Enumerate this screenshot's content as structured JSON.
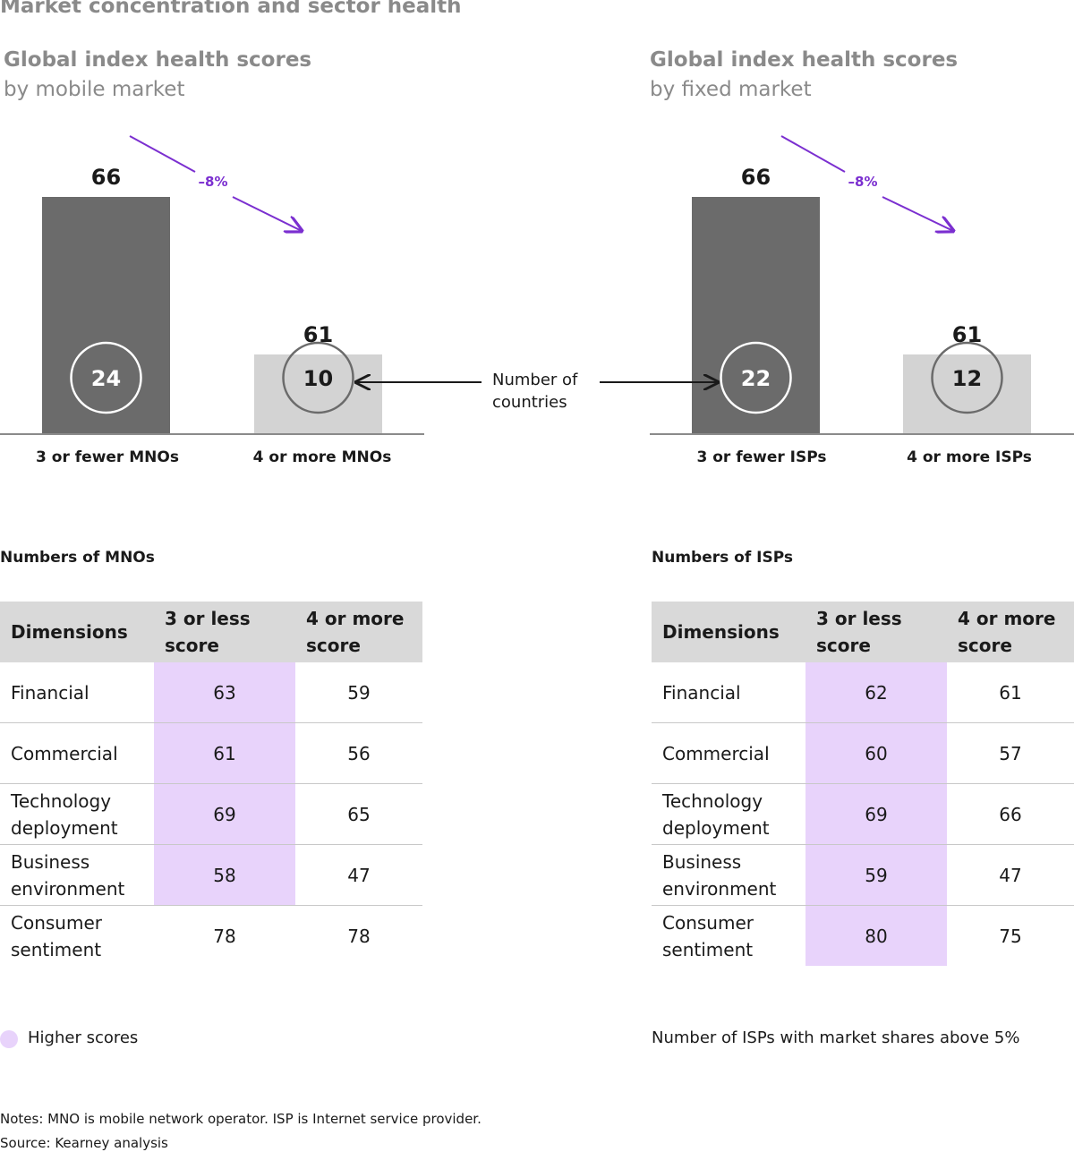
{
  "title": "Market concentration and sector health",
  "chart_data": [
    {
      "type": "bar",
      "title": "Global index health scores",
      "subtitle": "by mobile market",
      "categories": [
        "3 or fewer MNOs",
        "4 or more MNOs"
      ],
      "values": [
        66,
        61
      ],
      "countries": [
        24,
        10
      ],
      "change_label": "–8%",
      "ylim": [
        0,
        80
      ],
      "colors": [
        "#6b6b6b",
        "#d3d3d3"
      ]
    },
    {
      "type": "bar",
      "title": "Global index health scores",
      "subtitle": "by fixed market",
      "categories": [
        "3 or fewer ISPs",
        "4 or more ISPs"
      ],
      "values": [
        66,
        61
      ],
      "countries": [
        22,
        12
      ],
      "change_label": "–8%",
      "ylim": [
        0,
        80
      ],
      "colors": [
        "#6b6b6b",
        "#d3d3d3"
      ]
    }
  ],
  "countries_label": [
    "Number of",
    "countries"
  ],
  "tables": [
    {
      "section_title": "Numbers of MNOs",
      "headers": [
        "Dimensions",
        "3 or less score",
        "4 or more score"
      ],
      "rows": [
        {
          "dimension": "Financial",
          "a": "63",
          "b": "59",
          "highlight": "a"
        },
        {
          "dimension": "Commercial",
          "a": "61",
          "b": "56",
          "highlight": "a"
        },
        {
          "dimension": "Technology deployment",
          "a": "69",
          "b": "65",
          "highlight": "a"
        },
        {
          "dimension": "Business environment",
          "a": "58",
          "b": "47",
          "highlight": "a"
        },
        {
          "dimension": "Consumer sentiment",
          "a": "78",
          "b": "78",
          "highlight": ""
        }
      ]
    },
    {
      "section_title": "Numbers of ISPs",
      "headers": [
        "Dimensions",
        "3 or less score",
        "4 or more score"
      ],
      "rows": [
        {
          "dimension": "Financial",
          "a": "62",
          "b": "61",
          "highlight": "a"
        },
        {
          "dimension": "Commercial",
          "a": "60",
          "b": "57",
          "highlight": "a"
        },
        {
          "dimension": "Technology deployment",
          "a": "69",
          "b": "66",
          "highlight": "a"
        },
        {
          "dimension": "Business environment",
          "a": "59",
          "b": "47",
          "highlight": "a"
        },
        {
          "dimension": "Consumer sentiment",
          "a": "80",
          "b": "75",
          "highlight": "a"
        }
      ]
    }
  ],
  "legend": {
    "higher_scores": "Higher scores",
    "color": "#e8d3fb"
  },
  "isp_note": "Number of ISPs with market shares above 5%",
  "notes": "Notes: MNO is mobile network operator. ISP is Internet service provider.",
  "source": "Source: Kearney analysis",
  "accent_color": "#7b2fd0"
}
